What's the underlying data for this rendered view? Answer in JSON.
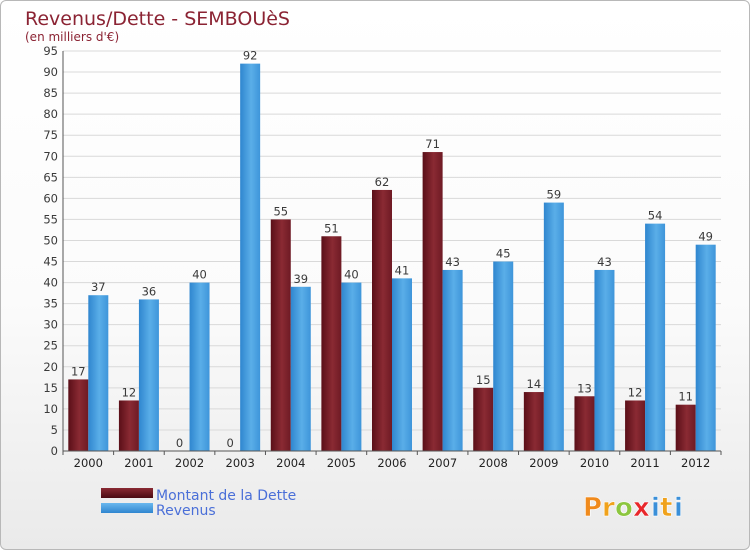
{
  "chart_data": {
    "type": "bar",
    "title": "Revenus/Dette - SEMBOUèS",
    "subtitle": "(en milliers d'€)",
    "categories": [
      "2000",
      "2001",
      "2002",
      "2003",
      "2004",
      "2005",
      "2006",
      "2007",
      "2008",
      "2009",
      "2010",
      "2011",
      "2012"
    ],
    "series": [
      {
        "name": "Montant de la Dette",
        "color": "#6e1a24",
        "values": [
          17,
          12,
          0,
          0,
          55,
          51,
          62,
          71,
          15,
          14,
          13,
          12,
          11
        ]
      },
      {
        "name": "Revenus",
        "color": "#4a9fe0",
        "values": [
          37,
          36,
          40,
          92,
          39,
          40,
          41,
          43,
          45,
          59,
          43,
          54,
          49
        ]
      }
    ],
    "yticks": [
      0,
      5,
      10,
      15,
      20,
      25,
      30,
      35,
      40,
      45,
      50,
      55,
      60,
      65,
      70,
      75,
      80,
      85,
      90,
      95
    ],
    "ylim": [
      0,
      95
    ],
    "grid": true,
    "legend": "bottom-left"
  },
  "logo": {
    "text": "Proxiti",
    "letters": [
      {
        "ch": "P",
        "color": "#f08a1c"
      },
      {
        "ch": "r",
        "color": "#f0a21c"
      },
      {
        "ch": "o",
        "color": "#8cc63f"
      },
      {
        "ch": "x",
        "color": "#e8262a"
      },
      {
        "ch": "i",
        "color": "#3a8fd8"
      },
      {
        "ch": "t",
        "color": "#f0a21c"
      },
      {
        "ch": "i",
        "color": "#3a8fd8"
      }
    ]
  }
}
